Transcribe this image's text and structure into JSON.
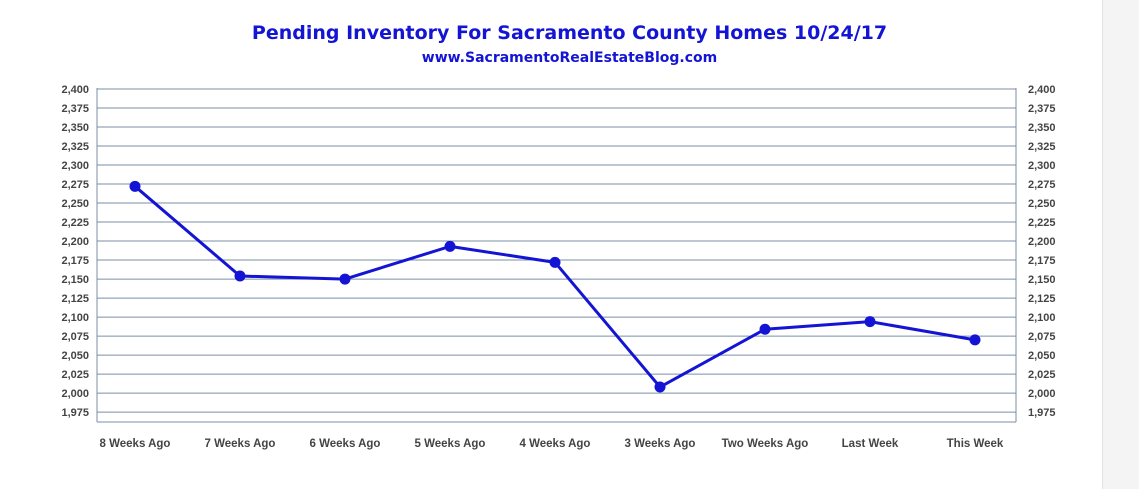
{
  "chart_data": {
    "type": "line",
    "title": "Pending Inventory For Sacramento County Homes 10/24/17",
    "subtitle": "www.SacramentoRealEstateBlog.com",
    "categories": [
      "8 Weeks Ago",
      "7 Weeks Ago",
      "6 Weeks Ago",
      "5 Weeks Ago",
      "4 Weeks Ago",
      "3 Weeks Ago",
      "Two Weeks Ago",
      "Last Week",
      "This Week"
    ],
    "values": [
      2272,
      2154,
      2150,
      2193,
      2172,
      2008,
      2084,
      2094,
      2070
    ],
    "ylim": [
      1962,
      2400
    ],
    "yticks": [
      "2,400",
      "2,375",
      "2,350",
      "2,325",
      "2,300",
      "2,275",
      "2,250",
      "2,225",
      "2,200",
      "2,175",
      "2,150",
      "2,125",
      "2,100",
      "2,075",
      "2,050",
      "2,025",
      "2,000",
      "1,975"
    ],
    "ytick_values": [
      2400,
      2375,
      2350,
      2325,
      2300,
      2275,
      2250,
      2225,
      2200,
      2175,
      2150,
      2125,
      2100,
      2075,
      2050,
      2025,
      2000,
      1975
    ],
    "xlabel": "",
    "ylabel": "",
    "grid": true,
    "line_color": "#1414d4",
    "grid_color": "#7a8fa6",
    "title_color": "#1414d4"
  }
}
